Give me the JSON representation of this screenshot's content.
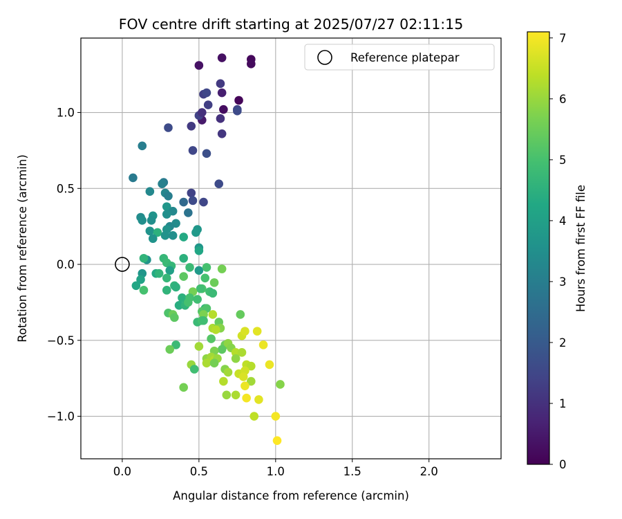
{
  "chart_data": {
    "type": "scatter",
    "title": "FOV centre drift starting at 2025/07/27 02:11:15",
    "xlabel": "Angular distance from reference (arcmin)",
    "ylabel": "Rotation from reference (arcmin)",
    "xlim": [
      -0.27,
      2.47
    ],
    "ylim": [
      -1.28,
      1.49
    ],
    "xticks": [
      0.0,
      0.5,
      1.0,
      1.5,
      2.0
    ],
    "xtick_labels": [
      "0.0",
      "0.5",
      "1.0",
      "1.5",
      "2.0"
    ],
    "yticks": [
      -1.0,
      -0.5,
      0.0,
      0.5,
      1.0
    ],
    "ytick_labels": [
      "−1.0",
      "−0.5",
      "0.0",
      "0.5",
      "1.0"
    ],
    "grid": true,
    "legend": {
      "placement": "top-right",
      "entries": [
        "Reference platepar"
      ]
    },
    "reference_point": {
      "x": 0.0,
      "y": 0.0,
      "label": "Reference platepar"
    },
    "colorbar": {
      "label": "Hours from first FF file",
      "colormap": "viridis",
      "range": [
        0,
        7.1
      ],
      "ticks": [
        0,
        1,
        2,
        3,
        4,
        5,
        6,
        7
      ],
      "tick_labels": [
        "0",
        "1",
        "2",
        "3",
        "4",
        "5",
        "6",
        "7"
      ]
    },
    "points": [
      {
        "x": 0.84,
        "y": 1.35,
        "t": 0.15
      },
      {
        "x": 0.84,
        "y": 1.32,
        "t": 0.2
      },
      {
        "x": 0.65,
        "y": 1.36,
        "t": 0.3
      },
      {
        "x": 0.5,
        "y": 1.31,
        "t": 0.35
      },
      {
        "x": 0.76,
        "y": 1.08,
        "t": 0.1
      },
      {
        "x": 0.66,
        "y": 1.02,
        "t": 0.25
      },
      {
        "x": 0.52,
        "y": 0.95,
        "t": 0.5
      },
      {
        "x": 0.64,
        "y": 1.19,
        "t": 1.2
      },
      {
        "x": 0.65,
        "y": 1.13,
        "t": 0.6
      },
      {
        "x": 0.53,
        "y": 1.12,
        "t": 1.3
      },
      {
        "x": 0.55,
        "y": 1.13,
        "t": 1.5
      },
      {
        "x": 0.5,
        "y": 0.98,
        "t": 1.4
      },
      {
        "x": 0.52,
        "y": 1.0,
        "t": 1.0
      },
      {
        "x": 0.56,
        "y": 1.05,
        "t": 1.3
      },
      {
        "x": 0.75,
        "y": 1.02,
        "t": 1.4
      },
      {
        "x": 0.75,
        "y": 1.01,
        "t": 1.6
      },
      {
        "x": 0.64,
        "y": 0.96,
        "t": 1.0
      },
      {
        "x": 0.65,
        "y": 0.86,
        "t": 1.1
      },
      {
        "x": 0.45,
        "y": 0.91,
        "t": 1.2
      },
      {
        "x": 0.3,
        "y": 0.9,
        "t": 1.6
      },
      {
        "x": 0.46,
        "y": 0.75,
        "t": 1.5
      },
      {
        "x": 0.55,
        "y": 0.73,
        "t": 1.7
      },
      {
        "x": 0.63,
        "y": 0.53,
        "t": 1.6
      },
      {
        "x": 0.45,
        "y": 0.47,
        "t": 1.4
      },
      {
        "x": 0.46,
        "y": 0.42,
        "t": 1.6
      },
      {
        "x": 0.53,
        "y": 0.41,
        "t": 1.5
      },
      {
        "x": 0.4,
        "y": 0.41,
        "t": 2.4
      },
      {
        "x": 0.43,
        "y": 0.34,
        "t": 2.7
      },
      {
        "x": 0.13,
        "y": 0.78,
        "t": 3.0
      },
      {
        "x": 0.07,
        "y": 0.57,
        "t": 2.9
      },
      {
        "x": 0.27,
        "y": 0.54,
        "t": 2.9
      },
      {
        "x": 0.26,
        "y": 0.53,
        "t": 3.1
      },
      {
        "x": 0.18,
        "y": 0.48,
        "t": 3.3
      },
      {
        "x": 0.28,
        "y": 0.47,
        "t": 3.2
      },
      {
        "x": 0.3,
        "y": 0.45,
        "t": 3.0
      },
      {
        "x": 0.29,
        "y": 0.38,
        "t": 3.7
      },
      {
        "x": 0.33,
        "y": 0.35,
        "t": 3.3
      },
      {
        "x": 0.29,
        "y": 0.33,
        "t": 3.5
      },
      {
        "x": 0.2,
        "y": 0.32,
        "t": 3.6
      },
      {
        "x": 0.12,
        "y": 0.31,
        "t": 3.4
      },
      {
        "x": 0.19,
        "y": 0.29,
        "t": 3.5
      },
      {
        "x": 0.13,
        "y": 0.29,
        "t": 3.5
      },
      {
        "x": 0.35,
        "y": 0.27,
        "t": 3.4
      },
      {
        "x": 0.31,
        "y": 0.25,
        "t": 3.3
      },
      {
        "x": 0.29,
        "y": 0.23,
        "t": 3.6
      },
      {
        "x": 0.49,
        "y": 0.23,
        "t": 3.7
      },
      {
        "x": 0.48,
        "y": 0.21,
        "t": 3.8
      },
      {
        "x": 0.18,
        "y": 0.22,
        "t": 3.6
      },
      {
        "x": 0.23,
        "y": 0.21,
        "t": 4.5
      },
      {
        "x": 0.28,
        "y": 0.19,
        "t": 3.6
      },
      {
        "x": 0.33,
        "y": 0.19,
        "t": 3.5
      },
      {
        "x": 0.4,
        "y": 0.18,
        "t": 4.3
      },
      {
        "x": 0.2,
        "y": 0.17,
        "t": 3.6
      },
      {
        "x": 0.5,
        "y": 0.11,
        "t": 3.7
      },
      {
        "x": 0.5,
        "y": 0.09,
        "t": 4.2
      },
      {
        "x": 0.16,
        "y": 0.03,
        "t": 3.6
      },
      {
        "x": 0.14,
        "y": 0.04,
        "t": 4.6
      },
      {
        "x": 0.27,
        "y": 0.04,
        "t": 4.7
      },
      {
        "x": 0.29,
        "y": 0.01,
        "t": 4.8
      },
      {
        "x": 0.4,
        "y": 0.04,
        "t": 4.5
      },
      {
        "x": 0.32,
        "y": -0.01,
        "t": 4.7
      },
      {
        "x": 0.31,
        "y": -0.04,
        "t": 4.0
      },
      {
        "x": 0.44,
        "y": -0.02,
        "t": 4.8
      },
      {
        "x": 0.5,
        "y": -0.04,
        "t": 3.8
      },
      {
        "x": 0.55,
        "y": -0.02,
        "t": 5.0
      },
      {
        "x": 0.65,
        "y": -0.03,
        "t": 5.6
      },
      {
        "x": 0.13,
        "y": -0.06,
        "t": 3.7
      },
      {
        "x": 0.22,
        "y": -0.06,
        "t": 4.3
      },
      {
        "x": 0.24,
        "y": -0.06,
        "t": 4.6
      },
      {
        "x": 0.12,
        "y": -0.1,
        "t": 4.1
      },
      {
        "x": 0.29,
        "y": -0.09,
        "t": 4.7
      },
      {
        "x": 0.4,
        "y": -0.08,
        "t": 5.3
      },
      {
        "x": 0.54,
        "y": -0.09,
        "t": 5.0
      },
      {
        "x": 0.6,
        "y": -0.12,
        "t": 5.5
      },
      {
        "x": 0.09,
        "y": -0.14,
        "t": 4.2
      },
      {
        "x": 0.34,
        "y": -0.14,
        "t": 4.6
      },
      {
        "x": 0.35,
        "y": -0.15,
        "t": 4.5
      },
      {
        "x": 0.52,
        "y": -0.16,
        "t": 5.1
      },
      {
        "x": 0.14,
        "y": -0.17,
        "t": 5.0
      },
      {
        "x": 0.29,
        "y": -0.17,
        "t": 4.6
      },
      {
        "x": 0.51,
        "y": -0.16,
        "t": 4.9
      },
      {
        "x": 0.46,
        "y": -0.18,
        "t": 5.6
      },
      {
        "x": 0.57,
        "y": -0.18,
        "t": 4.9
      },
      {
        "x": 0.59,
        "y": -0.19,
        "t": 4.8
      },
      {
        "x": 0.39,
        "y": -0.22,
        "t": 4.5
      },
      {
        "x": 0.44,
        "y": -0.22,
        "t": 5.0
      },
      {
        "x": 0.49,
        "y": -0.23,
        "t": 4.9
      },
      {
        "x": 0.37,
        "y": -0.27,
        "t": 4.4
      },
      {
        "x": 0.41,
        "y": -0.27,
        "t": 4.6
      },
      {
        "x": 0.43,
        "y": -0.25,
        "t": 5.0
      },
      {
        "x": 0.54,
        "y": -0.29,
        "t": 4.6
      },
      {
        "x": 0.52,
        "y": -0.31,
        "t": 5.2
      },
      {
        "x": 0.55,
        "y": -0.29,
        "t": 5.1
      },
      {
        "x": 0.3,
        "y": -0.32,
        "t": 5.1
      },
      {
        "x": 0.33,
        "y": -0.33,
        "t": 5.5
      },
      {
        "x": 0.34,
        "y": -0.35,
        "t": 5.3
      },
      {
        "x": 0.53,
        "y": -0.33,
        "t": 5.7
      },
      {
        "x": 0.59,
        "y": -0.33,
        "t": 6.3
      },
      {
        "x": 0.77,
        "y": -0.33,
        "t": 5.4
      },
      {
        "x": 0.49,
        "y": -0.38,
        "t": 4.8
      },
      {
        "x": 0.52,
        "y": -0.37,
        "t": 5.0
      },
      {
        "x": 0.53,
        "y": -0.37,
        "t": 4.9
      },
      {
        "x": 0.63,
        "y": -0.38,
        "t": 5.4
      },
      {
        "x": 0.59,
        "y": -0.42,
        "t": 6.2
      },
      {
        "x": 0.62,
        "y": -0.42,
        "t": 5.6
      },
      {
        "x": 0.64,
        "y": -0.42,
        "t": 5.8
      },
      {
        "x": 0.61,
        "y": -0.43,
        "t": 6.3
      },
      {
        "x": 0.78,
        "y": -0.47,
        "t": 6.6
      },
      {
        "x": 0.8,
        "y": -0.44,
        "t": 6.7
      },
      {
        "x": 0.88,
        "y": -0.44,
        "t": 6.8
      },
      {
        "x": 0.58,
        "y": -0.49,
        "t": 5.2
      },
      {
        "x": 0.5,
        "y": -0.54,
        "t": 6.1
      },
      {
        "x": 0.35,
        "y": -0.53,
        "t": 4.8
      },
      {
        "x": 0.31,
        "y": -0.56,
        "t": 5.5
      },
      {
        "x": 0.67,
        "y": -0.53,
        "t": 5.5
      },
      {
        "x": 0.69,
        "y": -0.52,
        "t": 5.9
      },
      {
        "x": 0.65,
        "y": -0.56,
        "t": 5.3
      },
      {
        "x": 0.71,
        "y": -0.55,
        "t": 5.8
      },
      {
        "x": 0.6,
        "y": -0.57,
        "t": 5.7
      },
      {
        "x": 0.74,
        "y": -0.58,
        "t": 6.3
      },
      {
        "x": 0.78,
        "y": -0.58,
        "t": 6.2
      },
      {
        "x": 0.92,
        "y": -0.53,
        "t": 6.9
      },
      {
        "x": 0.55,
        "y": -0.62,
        "t": 5.9
      },
      {
        "x": 0.58,
        "y": -0.61,
        "t": 6.1
      },
      {
        "x": 0.6,
        "y": -0.63,
        "t": 6.3
      },
      {
        "x": 0.62,
        "y": -0.62,
        "t": 6.0
      },
      {
        "x": 0.74,
        "y": -0.62,
        "t": 5.9
      },
      {
        "x": 0.45,
        "y": -0.66,
        "t": 6.0
      },
      {
        "x": 0.55,
        "y": -0.65,
        "t": 6.2
      },
      {
        "x": 0.6,
        "y": -0.65,
        "t": 5.6
      },
      {
        "x": 0.67,
        "y": -0.69,
        "t": 5.8
      },
      {
        "x": 0.81,
        "y": -0.66,
        "t": 6.4
      },
      {
        "x": 0.84,
        "y": -0.67,
        "t": 6.3
      },
      {
        "x": 0.96,
        "y": -0.66,
        "t": 6.9
      },
      {
        "x": 0.47,
        "y": -0.69,
        "t": 4.9
      },
      {
        "x": 0.69,
        "y": -0.71,
        "t": 6.1
      },
      {
        "x": 0.76,
        "y": -0.72,
        "t": 6.5
      },
      {
        "x": 0.8,
        "y": -0.7,
        "t": 6.6
      },
      {
        "x": 0.79,
        "y": -0.74,
        "t": 6.7
      },
      {
        "x": 0.66,
        "y": -0.77,
        "t": 6.3
      },
      {
        "x": 0.84,
        "y": -0.77,
        "t": 6.1
      },
      {
        "x": 1.03,
        "y": -0.79,
        "t": 5.8
      },
      {
        "x": 0.4,
        "y": -0.81,
        "t": 5.6
      },
      {
        "x": 0.8,
        "y": -0.8,
        "t": 6.9
      },
      {
        "x": 0.68,
        "y": -0.86,
        "t": 6.0
      },
      {
        "x": 0.74,
        "y": -0.86,
        "t": 6.2
      },
      {
        "x": 0.81,
        "y": -0.88,
        "t": 7.0
      },
      {
        "x": 0.89,
        "y": -0.89,
        "t": 6.8
      },
      {
        "x": 0.86,
        "y": -1.0,
        "t": 6.4
      },
      {
        "x": 1.0,
        "y": -1.0,
        "t": 7.0
      },
      {
        "x": 1.01,
        "y": -1.16,
        "t": 7.1
      }
    ]
  }
}
